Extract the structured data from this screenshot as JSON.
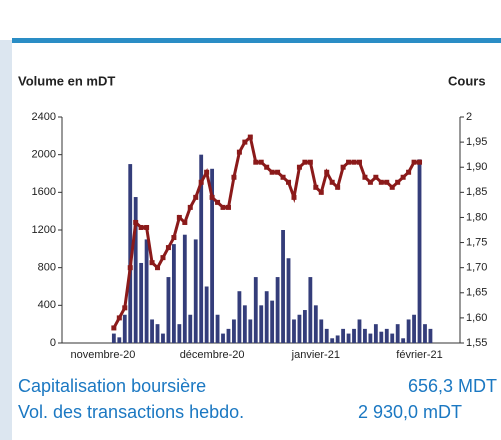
{
  "chart_data": {
    "type": "bar",
    "y_label": "Volume en mDT",
    "y2_label": "Cours",
    "categories": [
      null,
      null,
      null,
      null,
      null,
      null,
      null,
      "novembre-20",
      null,
      null,
      null,
      null,
      null,
      null,
      null,
      null,
      null,
      null,
      null,
      null,
      null,
      null,
      null,
      null,
      null,
      null,
      null,
      "décembre-20",
      null,
      null,
      null,
      null,
      null,
      null,
      null,
      null,
      null,
      null,
      null,
      null,
      null,
      null,
      null,
      null,
      null,
      null,
      "janvier-21",
      null,
      null,
      null,
      null,
      null,
      null,
      null,
      null,
      null,
      null,
      null,
      null,
      null,
      null,
      null,
      null,
      null,
      null,
      "février-21",
      null,
      null,
      null,
      null,
      null,
      null
    ],
    "series": [
      {
        "name": "Volume",
        "color": "#343d7a",
        "values": [
          null,
          null,
          null,
          null,
          null,
          null,
          null,
          null,
          null,
          100,
          60,
          300,
          1900,
          1550,
          850,
          1100,
          250,
          200,
          100,
          700,
          1050,
          200,
          1150,
          300,
          1100,
          2000,
          600,
          1850,
          300,
          100,
          150,
          250,
          550,
          400,
          250,
          700,
          400,
          550,
          450,
          700,
          1200,
          900,
          250,
          300,
          350,
          700,
          400,
          250,
          150,
          50,
          80,
          150,
          100,
          150,
          250,
          150,
          100,
          200,
          120,
          150,
          100,
          200,
          50,
          250,
          300,
          1950,
          200,
          150,
          null,
          null,
          null,
          null
        ]
      },
      {
        "name": "Cours",
        "color": "#8b1a1a",
        "axis": "y2",
        "values": [
          null,
          null,
          null,
          null,
          null,
          null,
          null,
          null,
          null,
          1.58,
          1.6,
          1.62,
          1.7,
          1.79,
          1.78,
          1.78,
          1.71,
          1.7,
          1.72,
          1.74,
          1.76,
          1.8,
          1.79,
          1.82,
          1.84,
          1.87,
          1.89,
          1.84,
          1.83,
          1.82,
          1.82,
          1.88,
          1.93,
          1.95,
          1.96,
          1.91,
          1.91,
          1.9,
          1.89,
          1.89,
          1.88,
          1.87,
          1.84,
          1.9,
          1.91,
          1.91,
          1.86,
          1.85,
          1.89,
          1.87,
          1.86,
          1.9,
          1.91,
          1.91,
          1.91,
          1.88,
          1.87,
          1.88,
          1.87,
          1.87,
          1.86,
          1.87,
          1.88,
          1.89,
          1.91,
          1.91,
          null,
          null,
          null,
          null,
          null,
          null
        ]
      }
    ],
    "ylim": [
      0,
      2400
    ],
    "yticks": [
      0,
      400,
      800,
      1200,
      1600,
      2000,
      2400
    ],
    "y2lim": [
      1.55,
      2
    ],
    "y2ticks": [
      {
        "value": 1.55,
        "label": "1,55"
      },
      {
        "value": 1.6,
        "label": "1,60"
      },
      {
        "value": 1.65,
        "label": "1,65"
      },
      {
        "value": 1.7,
        "label": "1,70"
      },
      {
        "value": 1.75,
        "label": "1,75"
      },
      {
        "value": 1.8,
        "label": "1,80"
      },
      {
        "value": 1.85,
        "label": "1,85"
      },
      {
        "value": 1.9,
        "label": "1,90"
      },
      {
        "value": 1.95,
        "label": "1,95"
      },
      2
    ]
  },
  "info": [
    {
      "label": "Capitalisation boursière",
      "value": "656,3 MDT"
    },
    {
      "label": "Vol. des transactions hebdo.",
      "value": "2 930,0 mDT"
    }
  ]
}
